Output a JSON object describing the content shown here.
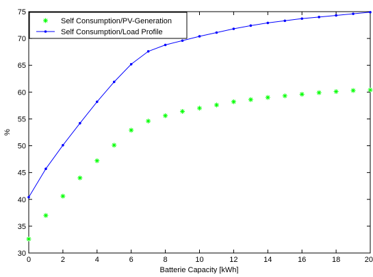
{
  "chart_data": {
    "type": "line",
    "xlabel": "Batterie Capacity [kWh]",
    "ylabel": "%",
    "xlim": [
      0,
      20
    ],
    "ylim": [
      30,
      75
    ],
    "x_ticks": [
      0,
      2,
      4,
      6,
      8,
      10,
      12,
      14,
      16,
      18,
      20
    ],
    "y_ticks": [
      30,
      35,
      40,
      45,
      50,
      55,
      60,
      65,
      70,
      75
    ],
    "grid": false,
    "legend_position": "top-left",
    "x": [
      0,
      1,
      2,
      3,
      4,
      5,
      6,
      7,
      8,
      9,
      10,
      11,
      12,
      13,
      14,
      15,
      16,
      17,
      18,
      19,
      20
    ],
    "series": [
      {
        "name": "Self Consumption/PV-Generation",
        "style": "markers",
        "marker": "asterisk",
        "color": "#00ff00",
        "values": [
          32.6,
          37.0,
          40.6,
          44.0,
          47.2,
          50.1,
          52.9,
          54.6,
          55.6,
          56.4,
          57.0,
          57.6,
          58.2,
          58.6,
          59.0,
          59.3,
          59.6,
          59.9,
          60.1,
          60.3,
          60.4
        ]
      },
      {
        "name": "Self Consumption/Load Profile",
        "style": "line-markers",
        "marker": "dot",
        "color": "#0000ff",
        "values": [
          40.4,
          45.7,
          50.1,
          54.2,
          58.2,
          61.9,
          65.2,
          67.6,
          68.8,
          69.6,
          70.4,
          71.1,
          71.8,
          72.4,
          72.9,
          73.3,
          73.7,
          74.0,
          74.3,
          74.6,
          74.9
        ]
      }
    ]
  }
}
